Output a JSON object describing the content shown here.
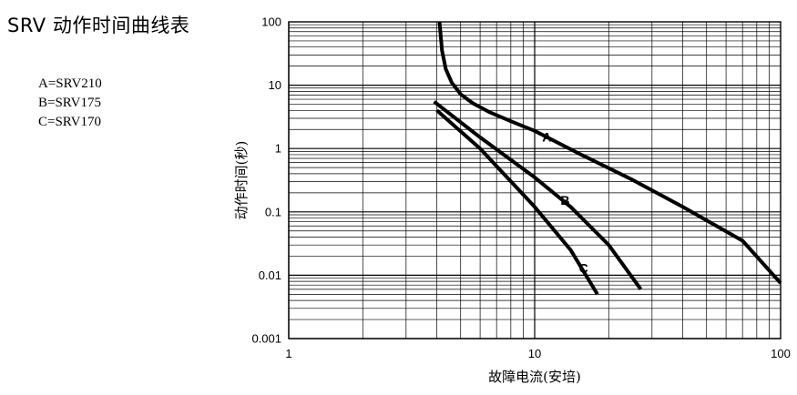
{
  "title": "SRV 动作时间曲线表",
  "legend": [
    {
      "text": "A=SRV210"
    },
    {
      "text": "B=SRV175"
    },
    {
      "text": "C=SRV170"
    }
  ],
  "chart_data": {
    "type": "line",
    "xlabel": "故障电流(安培)",
    "ylabel": "动作时间(秒)",
    "x_scale": "log",
    "y_scale": "log",
    "xlim": [
      1,
      100
    ],
    "ylim": [
      0.001,
      100
    ],
    "x_ticks": [
      1,
      10,
      100
    ],
    "x_tick_labels": [
      "1",
      "10",
      "100"
    ],
    "y_ticks": [
      0.001,
      0.01,
      0.1,
      1,
      10,
      100
    ],
    "y_tick_labels": [
      "0.001",
      "0.01",
      "0.1",
      "1",
      "10",
      "100"
    ],
    "grid": true,
    "series": [
      {
        "name": "A",
        "x": [
          4.1,
          4.2,
          4.35,
          4.6,
          5.0,
          5.6,
          6.5,
          8.0,
          10.0,
          15.0,
          25.0,
          40.0,
          70.0,
          100.0
        ],
        "y": [
          100,
          35,
          18,
          11,
          7.2,
          5.2,
          3.8,
          2.7,
          1.9,
          0.85,
          0.32,
          0.12,
          0.035,
          0.0075
        ]
      },
      {
        "name": "B",
        "x": [
          3.9,
          6.0,
          10.0,
          14.0,
          20.0,
          27.0
        ],
        "y": [
          5.5,
          1.5,
          0.35,
          0.12,
          0.03,
          0.006
        ]
      },
      {
        "name": "C",
        "x": [
          4.0,
          6.0,
          10.0,
          14.0,
          18.0
        ],
        "y": [
          4.0,
          1.0,
          0.12,
          0.025,
          0.005
        ]
      }
    ],
    "annotations": [
      {
        "text": "A",
        "x": 11.2,
        "y": 1.3
      },
      {
        "text": "B",
        "x": 13.3,
        "y": 0.13
      },
      {
        "text": "C",
        "x": 15.8,
        "y": 0.011
      }
    ]
  }
}
